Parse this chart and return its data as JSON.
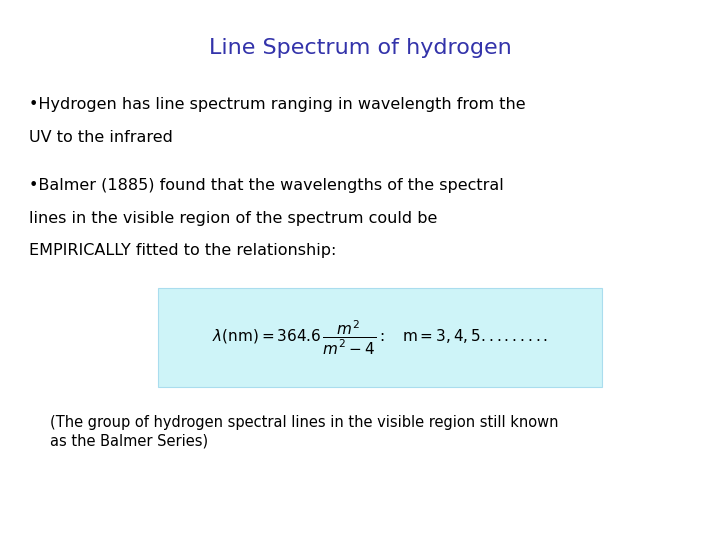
{
  "title": "Line Spectrum of hydrogen",
  "title_color": "#3333AA",
  "title_fontsize": 16,
  "background_color": "#ffffff",
  "bullet1_line1": "•Hydrogen has line spectrum ranging in wavelength from the",
  "bullet1_line2": "UV to the infrared",
  "bullet2_line1": "•Balmer (1885) found that the wavelengths of the spectral",
  "bullet2_line2": "lines in the visible region of the spectrum could be",
  "bullet2_line3": "EMPIRICALLY fitted to the relationship:",
  "formula_box_color": "#cef4f8",
  "formula_box_edge": "#aaddee",
  "footnote_line1": "(The group of hydrogen spectral lines in the visible region still known",
  "footnote_line2": "as the Balmer Series)",
  "body_fontsize": 11.5,
  "footnote_fontsize": 10.5
}
